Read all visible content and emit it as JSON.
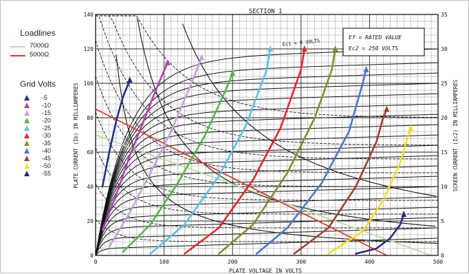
{
  "chart_data": {
    "type": "line",
    "title": "SECTION 1",
    "xlabel": "PLATE VOLTAGE IN VOLTS",
    "ylabel": "PLATE CURRENT (Ib) IN MILLIAMPERES",
    "y2label": "SCREEN CURRENT (Ic2) IN MILLIAMPERES",
    "xlim": [
      0,
      500
    ],
    "ylim": [
      0,
      140
    ],
    "y2lim": [
      0,
      35
    ],
    "x_ticks": [
      "0",
      "100",
      "200",
      "300",
      "400",
      "500"
    ],
    "y_ticks": [
      "0",
      "20",
      "40",
      "60",
      "80",
      "100",
      "120",
      "140"
    ],
    "y2_ticks": [
      "0",
      "5",
      "10",
      "15",
      "20",
      "25",
      "30",
      "35"
    ],
    "grid": true,
    "condition_box": [
      "Ef = RATED VALUE",
      "Ec2 = 250 VOLTS"
    ],
    "curve_annotation": "Ec1 = 0 VOLTS",
    "loadlines_title": "Loadlines",
    "loadlines": [
      {
        "name": "7000Ω",
        "color": "#b9dca5",
        "x": [
          0,
          490
        ],
        "y": [
          70,
          0
        ]
      },
      {
        "name": "5000Ω",
        "color": "#e03a2a",
        "x": [
          0,
          425
        ],
        "y": [
          85,
          0
        ]
      }
    ],
    "grid_volts_title": "Grid Volts",
    "series": [
      {
        "name": "-5",
        "color": "#1f2f8f",
        "x": [
          10,
          20,
          30,
          40,
          50
        ],
        "y": [
          40,
          60,
          78,
          92,
          102
        ]
      },
      {
        "name": "-10",
        "color": "#b23fb5",
        "x": [
          10,
          30,
          50,
          70,
          90,
          105
        ],
        "y": [
          15,
          35,
          58,
          78,
          98,
          112
        ]
      },
      {
        "name": "-15",
        "color": "#c9a0d8",
        "x": [
          20,
          50,
          80,
          110,
          140,
          155
        ],
        "y": [
          5,
          25,
          48,
          72,
          100,
          115
        ]
      },
      {
        "name": "-20",
        "color": "#52b848",
        "x": [
          40,
          80,
          120,
          160,
          190,
          200
        ],
        "y": [
          2,
          18,
          42,
          70,
          96,
          106
        ]
      },
      {
        "name": "-25",
        "color": "#5bc3e0",
        "x": [
          80,
          130,
          180,
          220,
          250,
          255
        ],
        "y": [
          1,
          18,
          46,
          76,
          108,
          120
        ]
      },
      {
        "name": "-30",
        "color": "#e8242b",
        "x": [
          130,
          180,
          230,
          270,
          300,
          305
        ],
        "y": [
          1,
          16,
          44,
          74,
          108,
          120
        ]
      },
      {
        "name": "-35",
        "color": "#8a8a2a",
        "x": [
          180,
          230,
          280,
          320,
          345,
          350
        ],
        "y": [
          1,
          18,
          48,
          80,
          108,
          120
        ]
      },
      {
        "name": "-40",
        "color": "#4a76c9",
        "x": [
          235,
          280,
          330,
          370,
          390,
          395
        ],
        "y": [
          1,
          16,
          42,
          72,
          100,
          108
        ]
      },
      {
        "name": "-45",
        "color": "#a0402a",
        "x": [
          290,
          340,
          380,
          410,
          420,
          425
        ],
        "y": [
          1,
          16,
          40,
          66,
          80,
          85
        ]
      },
      {
        "name": "-50",
        "color": "#f2e020",
        "x": [
          340,
          390,
          420,
          445,
          455,
          460
        ],
        "y": [
          1,
          14,
          32,
          54,
          68,
          74
        ]
      },
      {
        "name": "-55",
        "color": "#2a2a7a",
        "x": [
          380,
          410,
          430,
          445,
          450
        ],
        "y": [
          1,
          4,
          10,
          18,
          24
        ]
      }
    ]
  }
}
